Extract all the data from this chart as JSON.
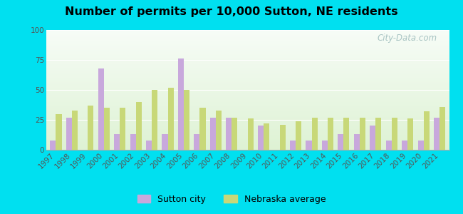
{
  "title": "Number of permits per 10,000 Sutton, NE residents",
  "years": [
    1997,
    1998,
    1999,
    2000,
    2001,
    2002,
    2003,
    2004,
    2005,
    2006,
    2007,
    2008,
    2009,
    2010,
    2011,
    2012,
    2013,
    2014,
    2015,
    2016,
    2017,
    2018,
    2019,
    2020,
    2021
  ],
  "sutton": [
    8,
    27,
    0,
    68,
    13,
    13,
    8,
    13,
    76,
    13,
    27,
    27,
    0,
    20,
    0,
    8,
    8,
    8,
    13,
    13,
    20,
    8,
    8,
    8,
    27
  ],
  "nebraska": [
    30,
    33,
    37,
    35,
    35,
    40,
    50,
    52,
    50,
    35,
    33,
    27,
    26,
    22,
    21,
    24,
    27,
    27,
    27,
    27,
    27,
    27,
    26,
    32,
    36
  ],
  "sutton_color": "#c8a8dc",
  "nebraska_color": "#c8d878",
  "figure_bg": "#00e0f0",
  "ylim": [
    0,
    100
  ],
  "yticks": [
    0,
    25,
    50,
    75,
    100
  ],
  "watermark": "City-Data.com",
  "legend_sutton": "Sutton city",
  "legend_nebraska": "Nebraska average",
  "title_fontsize": 11.5,
  "tick_fontsize": 7.5,
  "legend_fontsize": 9
}
